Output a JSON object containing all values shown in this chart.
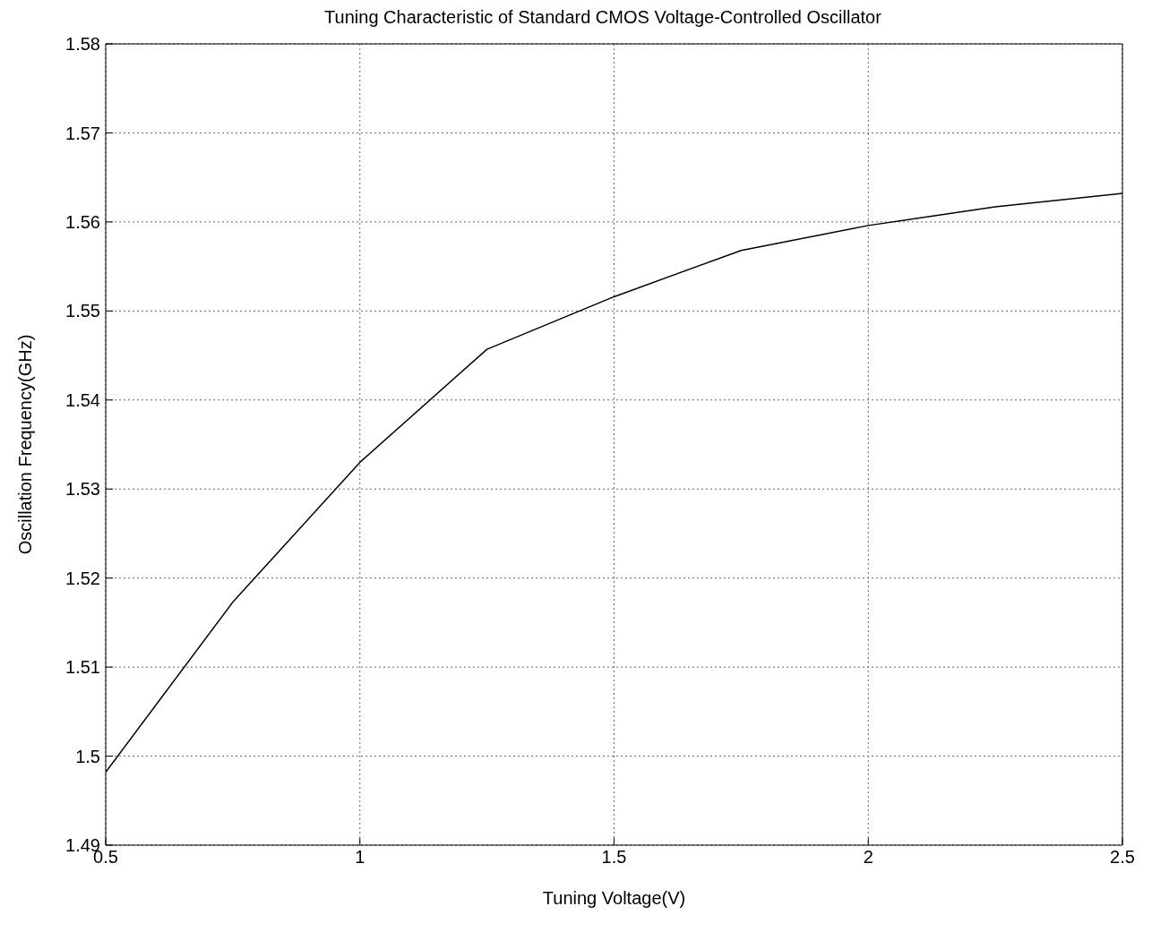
{
  "chart_data": {
    "type": "line",
    "title": "Tuning Characteristic of Standard CMOS Voltage-Controlled Oscillator",
    "xlabel": "Tuning Voltage(V)",
    "ylabel": "Oscillation Frequency(GHz)",
    "x": [
      0.5,
      0.75,
      1,
      1.25,
      1.5,
      1.75,
      2,
      2.25,
      2.5
    ],
    "series": [
      {
        "color": "#000000",
        "values": [
          1.4982,
          1.5173,
          1.533,
          1.5457,
          1.5516,
          1.5568,
          1.5596,
          1.5617,
          1.5632
        ]
      }
    ],
    "xlim": [
      0.5,
      2.5
    ],
    "xticks": [
      0.5,
      1,
      1.5,
      2,
      2.5
    ],
    "ylim": [
      1.49,
      1.58
    ],
    "yticks": [
      1.49,
      1.5,
      1.51,
      1.52,
      1.53,
      1.54,
      1.55,
      1.56,
      1.57,
      1.58
    ],
    "grid": true,
    "marker": "none",
    "line_style": "solid"
  }
}
